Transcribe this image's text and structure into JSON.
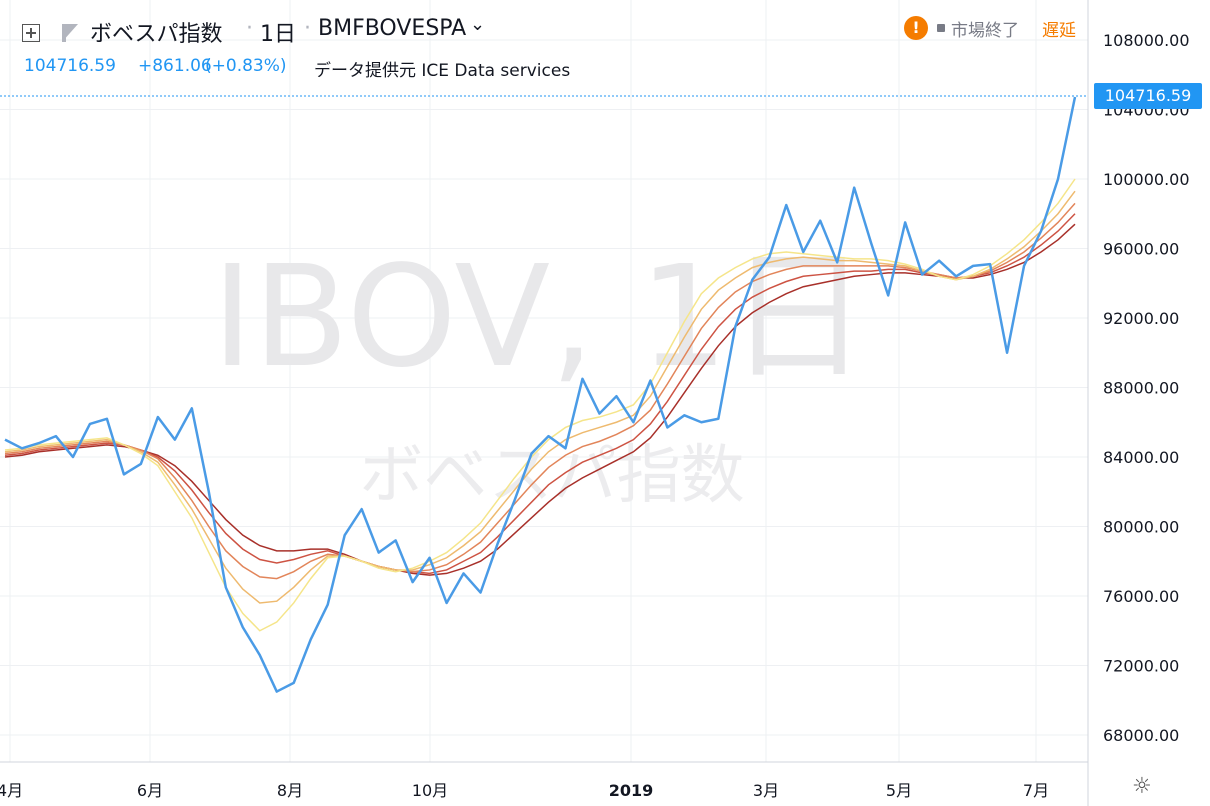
{
  "header": {
    "symbol_name": "ボベスパ指数",
    "interval": "1日",
    "ticker": "BMFBOVESPA",
    "dot": "·",
    "last_value": "104716.59",
    "change": "+861.06",
    "change_pct": "(+0.83%)",
    "data_source": "データ提供元 ICE Data services",
    "market_status": "市場終了",
    "delay": "遅延",
    "warn_glyph": "!"
  },
  "watermark": {
    "main": "IBOV, 1日",
    "sub": "ボベスパ指数"
  },
  "icons": [
    "add-compare-icon",
    "flag-icon",
    "warning-icon",
    "settings-icon"
  ],
  "colors": {
    "price_line": "#4a9be6",
    "ribbon": [
      "#f5e58a",
      "#f2d27a",
      "#eeba6f",
      "#e9a065",
      "#e2855a",
      "#d96a4f",
      "#cd5343",
      "#be3e35",
      "#a8302a"
    ],
    "accent": "#2196f3",
    "status_orange": "#f57c00"
  },
  "chart_data": {
    "type": "line",
    "x_label_ticks": [
      "4月",
      "6月",
      "8月",
      "10月",
      "2019",
      "3月",
      "5月",
      "7月"
    ],
    "ylim": [
      66000,
      110000
    ],
    "y_ticks": [
      68000,
      72000,
      76000,
      80000,
      84000,
      88000,
      92000,
      96000,
      100000,
      104000,
      108000
    ],
    "last_price": 104716.59,
    "series": [
      {
        "role": "price",
        "t": [
          0,
          5,
          10,
          15,
          20,
          25,
          30,
          35,
          40,
          45,
          50,
          55,
          60,
          65,
          70,
          75,
          80,
          85,
          90,
          95,
          100,
          105,
          110,
          115,
          120,
          125,
          130,
          135,
          140,
          145,
          150,
          155,
          160,
          165,
          170,
          175,
          180,
          185,
          190,
          195,
          200,
          205,
          210,
          215,
          220,
          225,
          230,
          235,
          240,
          245,
          250,
          255,
          260,
          265,
          270,
          275,
          280,
          285,
          290,
          295,
          300,
          305,
          310,
          315
        ],
        "values": [
          85000,
          84500,
          84800,
          85200,
          84000,
          85900,
          86200,
          83000,
          83600,
          86300,
          85000,
          86800,
          82000,
          76500,
          74200,
          72600,
          70500,
          71000,
          73500,
          75500,
          79500,
          81000,
          78500,
          79200,
          76800,
          78200,
          75600,
          77300,
          76200,
          79000,
          81500,
          84200,
          85200,
          84500,
          88500,
          86500,
          87500,
          86000,
          88400,
          85700,
          86400,
          86000,
          86200,
          91500,
          94200,
          95500,
          98500,
          95800,
          97600,
          95200,
          99500,
          96300,
          93300,
          97500,
          94500,
          95300,
          94400,
          95000,
          95100,
          90000,
          95000,
          97000,
          100000,
          104716.59
        ]
      },
      {
        "role": "ema",
        "values": [
          84400,
          84500,
          84700,
          84800,
          84900,
          85000,
          85100,
          84700,
          84200,
          83500,
          82000,
          80500,
          78500,
          76500,
          75000,
          74000,
          74500,
          75600,
          77000,
          78200,
          78300,
          78000,
          77600,
          77400,
          77600,
          78000,
          78500,
          79300,
          80200,
          81500,
          82800,
          84000,
          85000,
          85700,
          86100,
          86300,
          86600,
          87000,
          88200,
          90000,
          91800,
          93400,
          94300,
          94900,
          95400,
          95700,
          95800,
          95700,
          95600,
          95500,
          95400,
          95400,
          95300,
          95100,
          94800,
          94400,
          94200,
          94500,
          95000,
          95700,
          96500,
          97500,
          98600,
          100000
        ]
      },
      {
        "role": "ema",
        "values": [
          84300,
          84400,
          84600,
          84700,
          84800,
          84900,
          85000,
          84700,
          84300,
          83700,
          82400,
          81000,
          79300,
          77600,
          76400,
          75600,
          75700,
          76500,
          77500,
          78300,
          78300,
          78000,
          77700,
          77500,
          77500,
          77800,
          78200,
          78900,
          79700,
          80900,
          82100,
          83300,
          84300,
          85000,
          85400,
          85700,
          86000,
          86400,
          87500,
          89200,
          90900,
          92500,
          93600,
          94300,
          94900,
          95200,
          95400,
          95500,
          95400,
          95300,
          95300,
          95200,
          95100,
          95000,
          94700,
          94400,
          94200,
          94400,
          94800,
          95400,
          96100,
          97000,
          98000,
          99300
        ]
      },
      {
        "role": "ema",
        "values": [
          84200,
          84300,
          84500,
          84600,
          84700,
          84800,
          84900,
          84700,
          84400,
          83900,
          82800,
          81500,
          80000,
          78600,
          77700,
          77100,
          77000,
          77400,
          78000,
          78400,
          78300,
          78000,
          77700,
          77500,
          77400,
          77500,
          77800,
          78400,
          79100,
          80200,
          81300,
          82400,
          83400,
          84100,
          84600,
          84900,
          85300,
          85800,
          86700,
          88200,
          89800,
          91400,
          92600,
          93500,
          94100,
          94500,
          94800,
          95000,
          95000,
          95000,
          95000,
          95000,
          95000,
          94900,
          94700,
          94500,
          94300,
          94400,
          94700,
          95200,
          95800,
          96600,
          97500,
          98600
        ]
      },
      {
        "role": "ema",
        "values": [
          84100,
          84200,
          84400,
          84500,
          84600,
          84700,
          84800,
          84700,
          84400,
          84000,
          83200,
          82100,
          80800,
          79600,
          78700,
          78100,
          77900,
          78100,
          78400,
          78600,
          78300,
          78000,
          77700,
          77500,
          77400,
          77300,
          77500,
          78000,
          78500,
          79400,
          80400,
          81400,
          82400,
          83100,
          83700,
          84100,
          84500,
          85000,
          85900,
          87200,
          88700,
          90200,
          91500,
          92500,
          93200,
          93700,
          94100,
          94400,
          94500,
          94600,
          94700,
          94700,
          94800,
          94800,
          94600,
          94500,
          94300,
          94400,
          94600,
          95000,
          95500,
          96200,
          97000,
          98000
        ]
      },
      {
        "role": "ema",
        "values": [
          84000,
          84100,
          84300,
          84400,
          84500,
          84600,
          84700,
          84600,
          84400,
          84100,
          83500,
          82600,
          81500,
          80400,
          79500,
          78900,
          78600,
          78600,
          78700,
          78700,
          78400,
          78000,
          77700,
          77500,
          77300,
          77200,
          77300,
          77600,
          78000,
          78700,
          79600,
          80500,
          81400,
          82200,
          82800,
          83300,
          83800,
          84300,
          85100,
          86300,
          87700,
          89100,
          90400,
          91500,
          92300,
          92900,
          93400,
          93800,
          94000,
          94200,
          94400,
          94500,
          94600,
          94600,
          94500,
          94400,
          94300,
          94300,
          94500,
          94800,
          95200,
          95800,
          96500,
          97400
        ]
      }
    ]
  }
}
